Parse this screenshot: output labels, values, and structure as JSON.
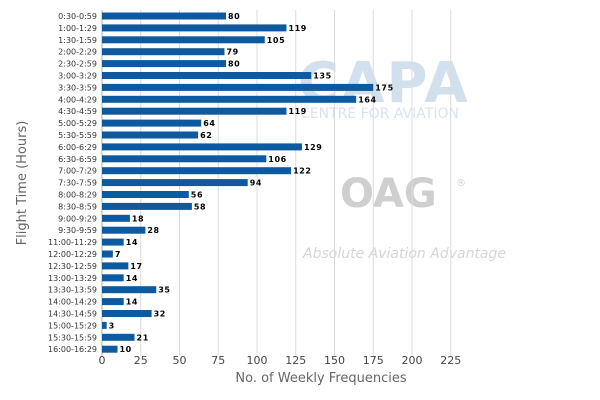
{
  "chart_data": {
    "type": "bar",
    "orientation": "horizontal",
    "categories": [
      "0:30-0:59",
      "1:00-1:29",
      "1:30-1:59",
      "2:00-2:29",
      "2:30-2:59",
      "3:00-3:29",
      "3:30-3:59",
      "4:00-4:29",
      "4:30-4:59",
      "5:00-5:29",
      "5:30-5:59",
      "6:00-6:29",
      "6:30-6:59",
      "7:00-7:29",
      "7:30-7:59",
      "8:00-8:29",
      "8:30-8:59",
      "9:00-9:29",
      "9:30-9:59",
      "11:00-11:29",
      "12:00-12:29",
      "12:30-12:59",
      "13:00-13:29",
      "13:30-13:59",
      "14:00-14:29",
      "14:30-14:59",
      "15:00-15:29",
      "15:30-15:59",
      "16:00-16:29"
    ],
    "values": [
      80,
      119,
      105,
      79,
      80,
      135,
      175,
      164,
      119,
      64,
      62,
      129,
      106,
      122,
      94,
      56,
      58,
      18,
      28,
      14,
      7,
      17,
      14,
      35,
      14,
      32,
      3,
      21,
      10
    ],
    "value_labels": [
      "80",
      "119",
      "105",
      "79",
      "80",
      "135",
      "175",
      "164",
      "119",
      "64",
      "62",
      "129",
      "106",
      "122",
      "94",
      "56",
      "58",
      "18",
      "28",
      "14",
      "7",
      "17",
      "14",
      "35",
      "14",
      "32",
      "3",
      "21",
      "10"
    ],
    "xlabel": "No. of Weekly Frequencies",
    "ylabel": "Flight Time (Hours)",
    "xlim": [
      0,
      250
    ],
    "xticks": [
      0,
      25,
      50,
      75,
      100,
      125,
      150,
      175,
      200,
      225
    ],
    "xtick_labels": [
      "0",
      "25",
      "50",
      "75",
      "100",
      "125",
      "150",
      "175",
      "200",
      "225"
    ],
    "grid": "vertical",
    "bar_color": "#0d5aa0"
  },
  "watermarks": {
    "capa_logo": "CAPA",
    "capa_subtitle": "CENTRE FOR AVIATION",
    "oag_logo": "OAG",
    "oag_registered": "®",
    "oag_tagline": "Absolute Aviation Advantage"
  }
}
